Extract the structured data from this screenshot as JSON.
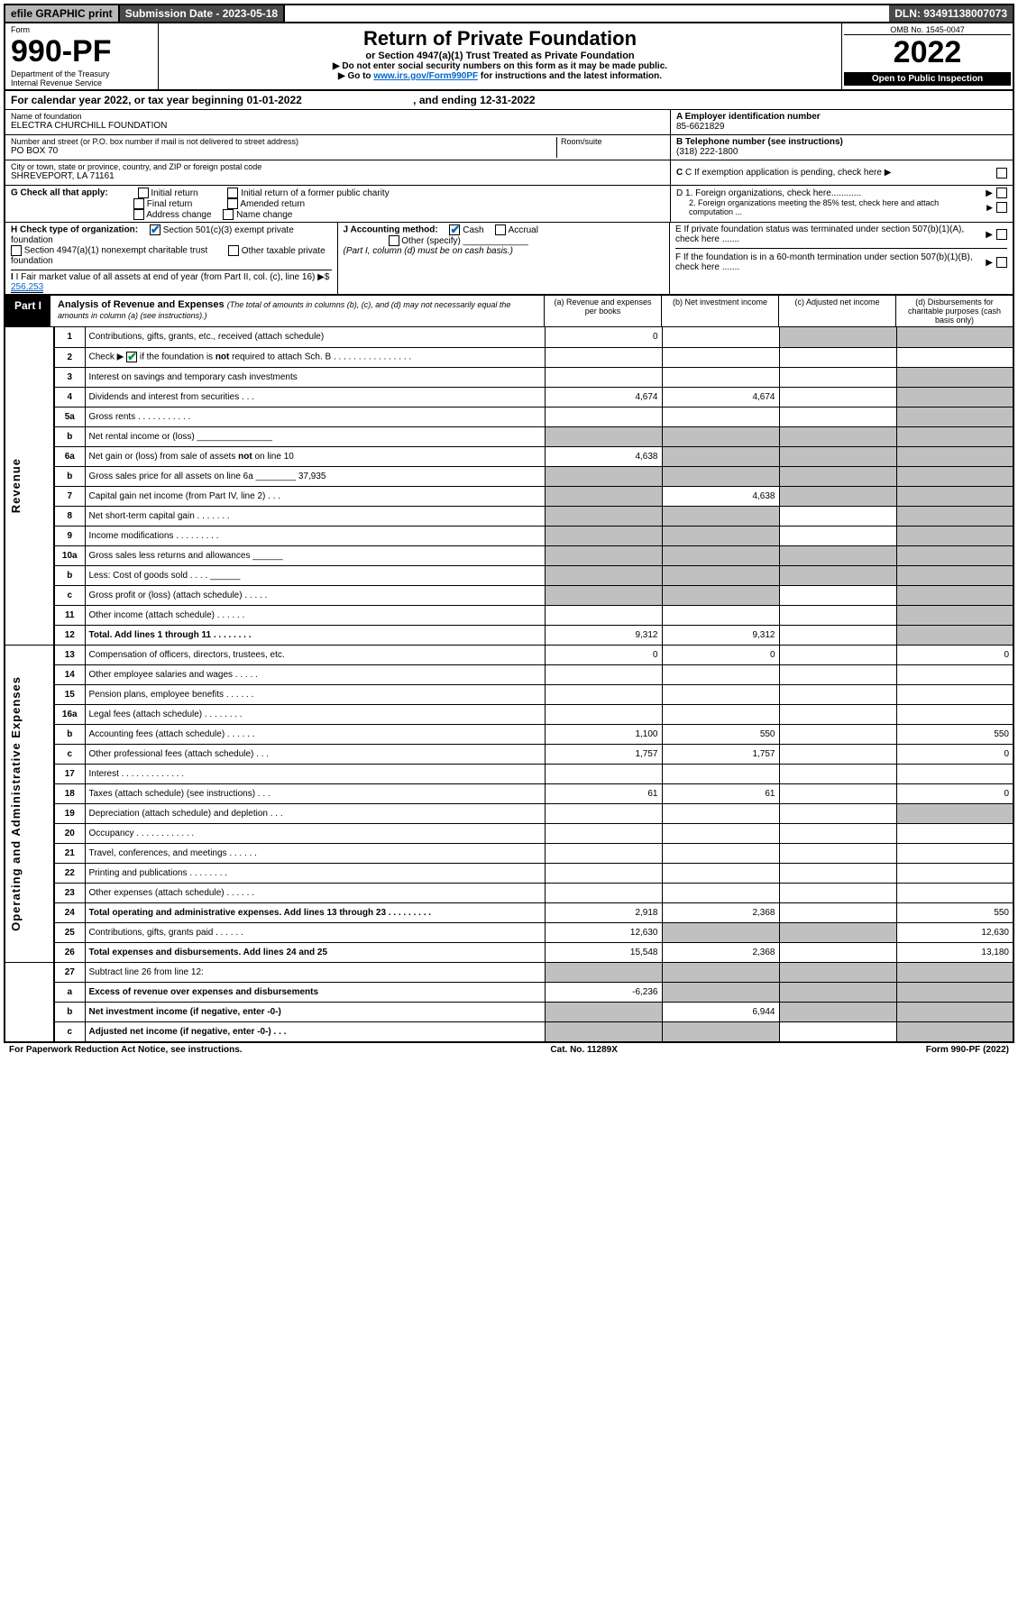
{
  "topbar": {
    "efile": "efile GRAPHIC print",
    "submission": "Submission Date - 2023-05-18",
    "dln": "DLN: 93491138007073"
  },
  "header": {
    "form_word": "Form",
    "form_no": "990-PF",
    "dept": "Department of the Treasury",
    "irs": "Internal Revenue Service",
    "title": "Return of Private Foundation",
    "subtitle": "or Section 4947(a)(1) Trust Treated as Private Foundation",
    "instr1": "▶ Do not enter social security numbers on this form as it may be made public.",
    "instr2_pre": "▶ Go to ",
    "instr2_link": "www.irs.gov/Form990PF",
    "instr2_post": " for instructions and the latest information.",
    "omb": "OMB No. 1545-0047",
    "year": "2022",
    "open": "Open to Public Inspection"
  },
  "cal": {
    "text_a": "For calendar year 2022, or tax year beginning 01-01-2022",
    "text_b": ", and ending 12-31-2022"
  },
  "info": {
    "name_label": "Name of foundation",
    "name": "ELECTRA CHURCHILL FOUNDATION",
    "addr_label": "Number and street (or P.O. box number if mail is not delivered to street address)",
    "addr": "PO BOX 70",
    "room_label": "Room/suite",
    "city_label": "City or town, state or province, country, and ZIP or foreign postal code",
    "city": "SHREVEPORT, LA  71161",
    "a_label": "A Employer identification number",
    "a_val": "85-6621829",
    "b_label": "B Telephone number (see instructions)",
    "b_val": "(318) 222-1800",
    "c_label": "C If exemption application is pending, check here",
    "d1": "D 1. Foreign organizations, check here............",
    "d2": "2. Foreign organizations meeting the 85% test, check here and attach computation ...",
    "e": "E  If private foundation status was terminated under section 507(b)(1)(A), check here .......",
    "f": "F  If the foundation is in a 60-month termination under section 507(b)(1)(B), check here .......",
    "g_label": "G Check all that apply:",
    "g_initial": "Initial return",
    "g_initial_pc": "Initial return of a former public charity",
    "g_final": "Final return",
    "g_amended": "Amended return",
    "g_addr": "Address change",
    "g_name": "Name change",
    "h_label": "H Check type of organization:",
    "h_501c3": "Section 501(c)(3) exempt private foundation",
    "h_4947": "Section 4947(a)(1) nonexempt charitable trust",
    "h_other_tax": "Other taxable private foundation",
    "i_label": "I Fair market value of all assets at end of year (from Part II, col. (c), line 16)",
    "i_val": "256,253",
    "j_label": "J Accounting method:",
    "j_cash": "Cash",
    "j_accrual": "Accrual",
    "j_other": "Other (specify)",
    "j_note": "(Part I, column (d) must be on cash basis.)"
  },
  "part1": {
    "label": "Part I",
    "title": "Analysis of Revenue and Expenses",
    "note": "(The total of amounts in columns (b), (c), and (d) may not necessarily equal the amounts in column (a) (see instructions).)",
    "col_a": "(a)   Revenue and expenses per books",
    "col_b": "(b)   Net investment income",
    "col_c": "(c)   Adjusted net income",
    "col_d": "(d)  Disbursements for charitable purposes (cash basis only)",
    "side_rev": "Revenue",
    "side_exp": "Operating and Administrative Expenses"
  },
  "rows": [
    {
      "n": "1",
      "d": "Contributions, gifts, grants, etc., received (attach schedule)",
      "a": "0",
      "b": "",
      "c": "g",
      "dd": "g"
    },
    {
      "n": "2",
      "d": "Check ▶ ☑ if the foundation is not required to attach Sch. B     .  .  .  .  .  .  .  .  .  .  .  .  .  .  .  .",
      "a": "",
      "b": "",
      "c": "",
      "dd": ""
    },
    {
      "n": "3",
      "d": "Interest on savings and temporary cash investments",
      "a": "",
      "b": "",
      "c": "",
      "dd": "g"
    },
    {
      "n": "4",
      "d": "Dividends and interest from securities    .   .   .",
      "a": "4,674",
      "b": "4,674",
      "c": "",
      "dd": "g"
    },
    {
      "n": "5a",
      "d": "Gross rents    .   .   .   .   .   .   .   .   .   .   .",
      "a": "",
      "b": "",
      "c": "",
      "dd": "g"
    },
    {
      "n": "b",
      "d": "Net rental income or (loss)  _______________",
      "a": "g",
      "b": "g",
      "c": "g",
      "dd": "g"
    },
    {
      "n": "6a",
      "d": "Net gain or (loss) from sale of assets not on line 10",
      "a": "4,638",
      "b": "g",
      "c": "g",
      "dd": "g"
    },
    {
      "n": "b",
      "d": "Gross sales price for all assets on line 6a ________ 37,935",
      "a": "g",
      "b": "g",
      "c": "g",
      "dd": "g"
    },
    {
      "n": "7",
      "d": "Capital gain net income (from Part IV, line 2)   .   .   .",
      "a": "g",
      "b": "4,638",
      "c": "g",
      "dd": "g"
    },
    {
      "n": "8",
      "d": "Net short-term capital gain  .   .   .   .   .   .   .",
      "a": "g",
      "b": "g",
      "c": "",
      "dd": "g"
    },
    {
      "n": "9",
      "d": "Income modifications  .   .   .   .   .   .   .   .   .",
      "a": "g",
      "b": "g",
      "c": "",
      "dd": "g"
    },
    {
      "n": "10a",
      "d": "Gross sales less returns and allowances  ______",
      "a": "g",
      "b": "g",
      "c": "g",
      "dd": "g"
    },
    {
      "n": "b",
      "d": "Less: Cost of goods sold    .   .   .   .   ______",
      "a": "g",
      "b": "g",
      "c": "g",
      "dd": "g"
    },
    {
      "n": "c",
      "d": "Gross profit or (loss) (attach schedule)    .   .   .   .   .",
      "a": "g",
      "b": "g",
      "c": "",
      "dd": "g"
    },
    {
      "n": "11",
      "d": "Other income (attach schedule)    .   .   .   .   .   .",
      "a": "",
      "b": "",
      "c": "",
      "dd": "g"
    },
    {
      "n": "12",
      "d": "Total. Add lines 1 through 11   .   .   .   .   .   .   .   .",
      "a": "9,312",
      "b": "9,312",
      "c": "",
      "dd": "g",
      "bold": true
    },
    {
      "n": "13",
      "d": "Compensation of officers, directors, trustees, etc.",
      "a": "0",
      "b": "0",
      "c": "",
      "dd": "0",
      "sec": "exp"
    },
    {
      "n": "14",
      "d": "Other employee salaries and wages    .   .   .   .   .",
      "a": "",
      "b": "",
      "c": "",
      "dd": ""
    },
    {
      "n": "15",
      "d": "Pension plans, employee benefits  .   .   .   .   .   .",
      "a": "",
      "b": "",
      "c": "",
      "dd": ""
    },
    {
      "n": "16a",
      "d": "Legal fees (attach schedule)  .   .   .   .   .   .   .   .",
      "a": "",
      "b": "",
      "c": "",
      "dd": ""
    },
    {
      "n": "b",
      "d": "Accounting fees (attach schedule)  .   .   .   .   .   .",
      "a": "1,100",
      "b": "550",
      "c": "",
      "dd": "550"
    },
    {
      "n": "c",
      "d": "Other professional fees (attach schedule)    .   .   .",
      "a": "1,757",
      "b": "1,757",
      "c": "",
      "dd": "0"
    },
    {
      "n": "17",
      "d": "Interest  .   .   .   .   .   .   .   .   .   .   .   .   .",
      "a": "",
      "b": "",
      "c": "",
      "dd": ""
    },
    {
      "n": "18",
      "d": "Taxes (attach schedule) (see instructions)    .   .   .",
      "a": "61",
      "b": "61",
      "c": "",
      "dd": "0"
    },
    {
      "n": "19",
      "d": "Depreciation (attach schedule) and depletion    .   .   .",
      "a": "",
      "b": "",
      "c": "",
      "dd": "g"
    },
    {
      "n": "20",
      "d": "Occupancy  .   .   .   .   .   .   .   .   .   .   .   .",
      "a": "",
      "b": "",
      "c": "",
      "dd": ""
    },
    {
      "n": "21",
      "d": "Travel, conferences, and meetings  .   .   .   .   .   .",
      "a": "",
      "b": "",
      "c": "",
      "dd": ""
    },
    {
      "n": "22",
      "d": "Printing and publications  .   .   .   .   .   .   .   .",
      "a": "",
      "b": "",
      "c": "",
      "dd": ""
    },
    {
      "n": "23",
      "d": "Other expenses (attach schedule)  .   .   .   .   .   .",
      "a": "",
      "b": "",
      "c": "",
      "dd": ""
    },
    {
      "n": "24",
      "d": "Total operating and administrative expenses. Add lines 13 through 23   .   .   .   .   .   .   .   .   .",
      "a": "2,918",
      "b": "2,368",
      "c": "",
      "dd": "550",
      "bold": true
    },
    {
      "n": "25",
      "d": "Contributions, gifts, grants paid    .   .   .   .   .   .",
      "a": "12,630",
      "b": "g",
      "c": "g",
      "dd": "12,630"
    },
    {
      "n": "26",
      "d": "Total expenses and disbursements. Add lines 24 and 25",
      "a": "15,548",
      "b": "2,368",
      "c": "",
      "dd": "13,180",
      "bold": true
    },
    {
      "n": "27",
      "d": "Subtract line 26 from line 12:",
      "a": "g",
      "b": "g",
      "c": "g",
      "dd": "g",
      "sec": "net"
    },
    {
      "n": "a",
      "d": "Excess of revenue over expenses and disbursements",
      "a": "-6,236",
      "b": "g",
      "c": "g",
      "dd": "g",
      "bold": true
    },
    {
      "n": "b",
      "d": "Net investment income (if negative, enter -0-)",
      "a": "g",
      "b": "6,944",
      "c": "g",
      "dd": "g",
      "bold": true
    },
    {
      "n": "c",
      "d": "Adjusted net income (if negative, enter -0-)   .   .   .",
      "a": "g",
      "b": "g",
      "c": "",
      "dd": "g",
      "bold": true
    }
  ],
  "footer": {
    "left": "For Paperwork Reduction Act Notice, see instructions.",
    "mid": "Cat. No. 11289X",
    "right": "Form 990-PF (2022)"
  },
  "colors": {
    "link": "#0066cc",
    "check": "#0066cc",
    "grey_cell": "#c0c0c0",
    "topbar_grey": "#b8b8b8",
    "topbar_dark": "#4a4a4a"
  }
}
